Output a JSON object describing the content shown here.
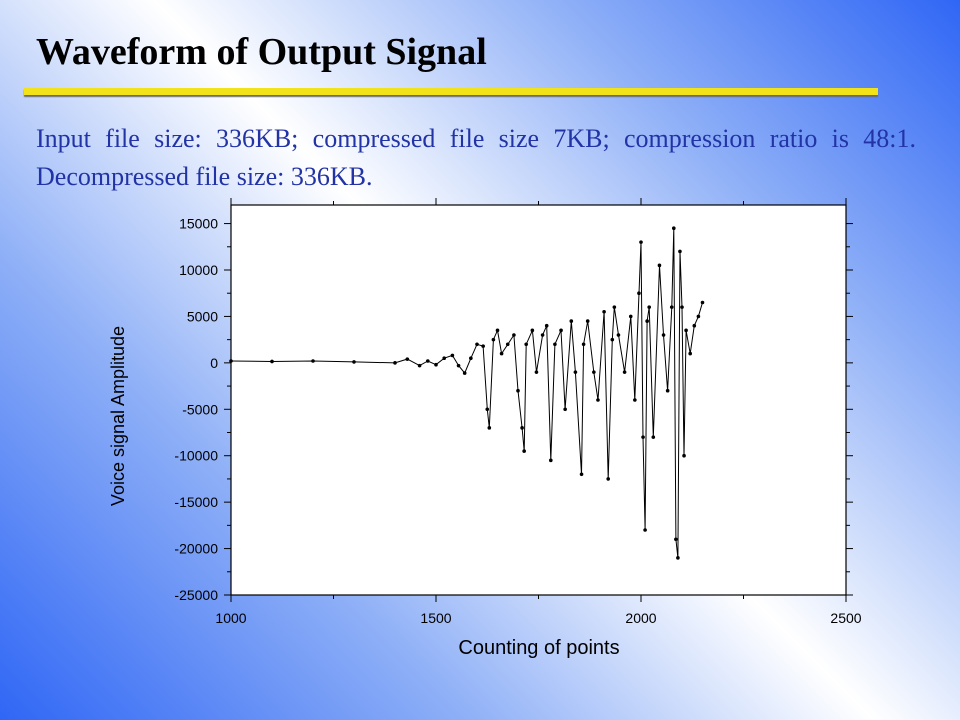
{
  "slide": {
    "title": "Waveform of Output Signal",
    "description": "Input file size: 336KB; compressed file size 7KB; compression ratio is 48:1. Decompressed file size: 336KB.",
    "accent_color": "#f2e21a",
    "description_color": "#2233a6"
  },
  "chart_data": {
    "type": "line",
    "xlabel": "Counting of points",
    "ylabel": "Voice signal Amplitude",
    "xlim": [
      1000,
      2500
    ],
    "ylim": [
      -25000,
      17000
    ],
    "xticks": [
      1000,
      1500,
      2000,
      2500
    ],
    "yticks": [
      15000,
      10000,
      5000,
      0,
      -5000,
      -10000,
      -15000,
      -20000,
      -25000
    ],
    "grid": false,
    "marker": "dot",
    "series": [
      {
        "x": [
          1000,
          1100,
          1200,
          1300,
          1400,
          1430,
          1460,
          1480,
          1500,
          1520,
          1540,
          1555,
          1570,
          1585,
          1600,
          1615,
          1625,
          1630,
          1640,
          1650,
          1660,
          1675,
          1690,
          1700,
          1710,
          1715,
          1720,
          1735,
          1745,
          1760,
          1770,
          1780,
          1790,
          1805,
          1815,
          1830,
          1840,
          1855,
          1860,
          1870,
          1885,
          1895,
          1910,
          1920,
          1930,
          1935,
          1945,
          1960,
          1975,
          1985,
          1995,
          2000,
          2005,
          2010,
          2015,
          2020,
          2030,
          2045,
          2055,
          2065,
          2075,
          2080,
          2085,
          2090,
          2095,
          2100,
          2105,
          2110,
          2120,
          2130,
          2140,
          2150
        ],
        "y": [
          200,
          150,
          200,
          100,
          0,
          400,
          -300,
          200,
          -200,
          500,
          800,
          -300,
          -1100,
          500,
          2000,
          1800,
          -5000,
          -7000,
          2500,
          3500,
          1000,
          2000,
          3000,
          -3000,
          -7000,
          -9500,
          2000,
          3500,
          -1000,
          3000,
          4000,
          -10500,
          2000,
          3500,
          -5000,
          4500,
          -1000,
          -12000,
          2000,
          4500,
          -1000,
          -4000,
          5500,
          -12500,
          2500,
          6000,
          3000,
          -1000,
          5000,
          -4000,
          7500,
          13000,
          -8000,
          -18000,
          4500,
          6000,
          -8000,
          10500,
          3000,
          -3000,
          6000,
          14500,
          -19000,
          -21000,
          12000,
          6000,
          -10000,
          3500,
          1000,
          4000,
          5000,
          6500
        ]
      }
    ]
  }
}
